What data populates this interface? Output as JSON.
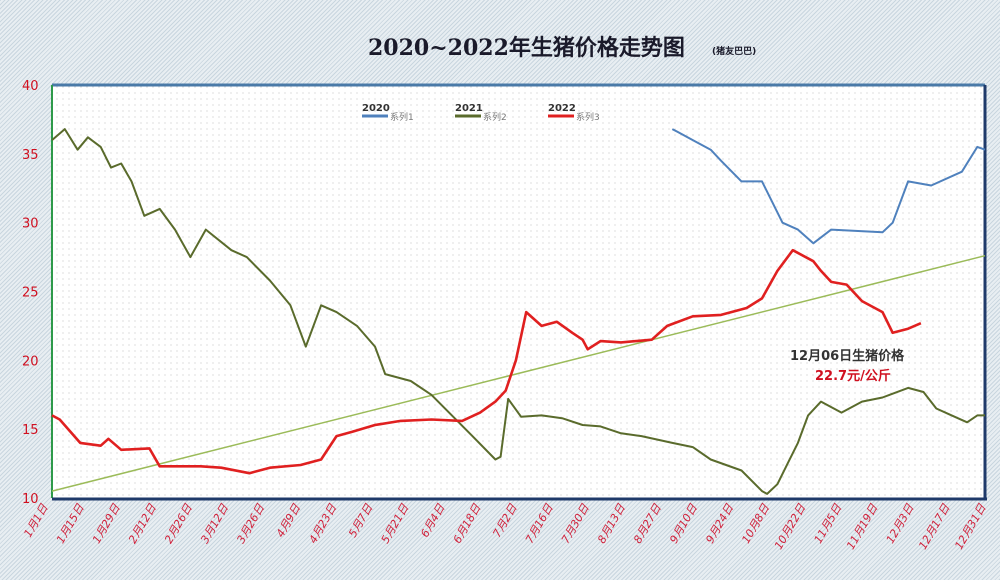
{
  "chart_data": {
    "type": "line",
    "title": "2020~2022年生猪价格走势图",
    "subtitle": "(猪友巴巴)",
    "ylim": [
      10,
      40
    ],
    "yticks": [
      10,
      15,
      20,
      25,
      30,
      35,
      40
    ],
    "xticks": [
      "1月1日",
      "1月15日",
      "1月29日",
      "2月12日",
      "2月26日",
      "3月12日",
      "3月26日",
      "4月9日",
      "4月23日",
      "5月7日",
      "5月21日",
      "6月4日",
      "6月18日",
      "7月2日",
      "7月16日",
      "7月30日",
      "8月13日",
      "8月27日",
      "9月10日",
      "9月24日",
      "10月8日",
      "10月22日",
      "11月5日",
      "11月19日",
      "12月3日",
      "12月17日",
      "12月31日"
    ],
    "grid": false,
    "legend_position": "top",
    "series": [
      {
        "year": "2020",
        "name": "系列1",
        "color": "#4f81bd",
        "points": [
          [
            "8/31",
            36.8
          ],
          [
            "9/2",
            36.6
          ],
          [
            "9/8",
            36.0
          ],
          [
            "9/15",
            35.3
          ],
          [
            "9/19",
            34.5
          ],
          [
            "9/27",
            33.0
          ],
          [
            "10/5",
            33.0
          ],
          [
            "10/13",
            30.0
          ],
          [
            "10/19",
            29.5
          ],
          [
            "10/25",
            28.5
          ],
          [
            "11/1",
            29.5
          ],
          [
            "11/21",
            29.3
          ],
          [
            "11/25",
            30.0
          ],
          [
            "12/1",
            33.0
          ],
          [
            "12/10",
            32.7
          ],
          [
            "12/22",
            33.7
          ],
          [
            "12/28",
            35.5
          ],
          [
            "12/31",
            35.3
          ]
        ]
      },
      {
        "year": "2021",
        "name": "系列2",
        "color": "#5a6b2c",
        "points": [
          [
            "1/1",
            36.0
          ],
          [
            "1/6",
            36.8
          ],
          [
            "1/11",
            35.3
          ],
          [
            "1/15",
            36.2
          ],
          [
            "1/20",
            35.5
          ],
          [
            "1/24",
            34.0
          ],
          [
            "1/28",
            34.3
          ],
          [
            "2/1",
            33.0
          ],
          [
            "2/6",
            30.5
          ],
          [
            "2/12",
            31.0
          ],
          [
            "2/18",
            29.5
          ],
          [
            "2/24",
            27.5
          ],
          [
            "3/2",
            29.5
          ],
          [
            "3/12",
            28.0
          ],
          [
            "3/18",
            27.5
          ],
          [
            "3/27",
            25.8
          ],
          [
            "4/4",
            24.0
          ],
          [
            "4/10",
            21.0
          ],
          [
            "4/16",
            24.0
          ],
          [
            "4/22",
            23.5
          ],
          [
            "4/30",
            22.5
          ],
          [
            "5/7",
            21.0
          ],
          [
            "5/11",
            19.0
          ],
          [
            "5/21",
            18.5
          ],
          [
            "5/29",
            17.5
          ],
          [
            "6/6",
            16.0
          ],
          [
            "6/14",
            14.5
          ],
          [
            "6/23",
            12.8
          ],
          [
            "6/25",
            13.0
          ],
          [
            "6/28",
            17.2
          ],
          [
            "7/3",
            15.9
          ],
          [
            "7/11",
            16.0
          ],
          [
            "7/19",
            15.8
          ],
          [
            "7/27",
            15.3
          ],
          [
            "8/3",
            15.2
          ],
          [
            "8/11",
            14.7
          ],
          [
            "8/19",
            14.5
          ],
          [
            "8/31",
            14.0
          ],
          [
            "9/8",
            13.7
          ],
          [
            "9/15",
            12.8
          ],
          [
            "9/27",
            12.0
          ],
          [
            "10/5",
            10.5
          ],
          [
            "10/7",
            10.3
          ],
          [
            "10/11",
            11.0
          ],
          [
            "10/15",
            12.5
          ],
          [
            "10/19",
            14.0
          ],
          [
            "10/23",
            16.0
          ],
          [
            "10/28",
            17.0
          ],
          [
            "11/5",
            16.2
          ],
          [
            "11/13",
            17.0
          ],
          [
            "11/21",
            17.3
          ],
          [
            "12/1",
            18.0
          ],
          [
            "12/7",
            17.7
          ],
          [
            "12/12",
            16.5
          ],
          [
            "12/18",
            16.0
          ],
          [
            "12/24",
            15.5
          ],
          [
            "12/28",
            16.0
          ],
          [
            "12/31",
            16.0
          ]
        ]
      },
      {
        "year": "2022",
        "name": "系列3",
        "color": "#e02020",
        "points": [
          [
            "1/1",
            16.0
          ],
          [
            "1/4",
            15.7
          ],
          [
            "1/12",
            14.0
          ],
          [
            "1/20",
            13.8
          ],
          [
            "1/23",
            14.3
          ],
          [
            "1/28",
            13.5
          ],
          [
            "2/8",
            13.6
          ],
          [
            "2/12",
            12.3
          ],
          [
            "2/28",
            12.3
          ],
          [
            "3/8",
            12.2
          ],
          [
            "3/19",
            11.8
          ],
          [
            "3/27",
            12.2
          ],
          [
            "4/8",
            12.4
          ],
          [
            "4/16",
            12.8
          ],
          [
            "4/22",
            14.5
          ],
          [
            "4/28",
            14.8
          ],
          [
            "5/7",
            15.3
          ],
          [
            "5/17",
            15.6
          ],
          [
            "5/29",
            15.7
          ],
          [
            "6/10",
            15.6
          ],
          [
            "6/17",
            16.2
          ],
          [
            "6/23",
            17.0
          ],
          [
            "6/27",
            17.8
          ],
          [
            "7/1",
            20.0
          ],
          [
            "7/5",
            23.5
          ],
          [
            "7/11",
            22.5
          ],
          [
            "7/17",
            22.8
          ],
          [
            "7/23",
            22.0
          ],
          [
            "7/27",
            21.5
          ],
          [
            "7/29",
            20.8
          ],
          [
            "8/3",
            21.4
          ],
          [
            "8/11",
            21.3
          ],
          [
            "8/23",
            21.5
          ],
          [
            "8/29",
            22.5
          ],
          [
            "9/8",
            23.2
          ],
          [
            "9/19",
            23.3
          ],
          [
            "9/29",
            23.8
          ],
          [
            "10/5",
            24.5
          ],
          [
            "10/11",
            26.5
          ],
          [
            "10/17",
            28.0
          ],
          [
            "10/25",
            27.2
          ],
          [
            "10/28",
            26.5
          ],
          [
            "11/1",
            25.7
          ],
          [
            "11/7",
            25.5
          ],
          [
            "11/13",
            24.3
          ],
          [
            "11/21",
            23.5
          ],
          [
            "11/25",
            22.0
          ],
          [
            "12/1",
            22.3
          ],
          [
            "12/6",
            22.7
          ]
        ]
      }
    ],
    "trendline": {
      "color": "#9bbb59",
      "start": [
        "1/1",
        10.5
      ],
      "end": [
        "12/31",
        27.6
      ]
    },
    "annotation": {
      "line1": "12月06日生猪价格",
      "line2": "22.7元/公斤"
    }
  }
}
